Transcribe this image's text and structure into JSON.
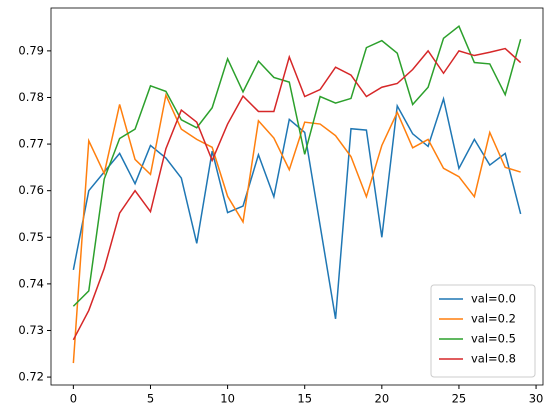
{
  "chart_data": {
    "type": "line",
    "x": [
      0,
      1,
      2,
      3,
      4,
      5,
      6,
      7,
      8,
      9,
      10,
      11,
      12,
      13,
      14,
      15,
      16,
      17,
      18,
      19,
      20,
      21,
      22,
      23,
      24,
      25,
      26,
      27,
      28,
      29
    ],
    "series": [
      {
        "name": "val=0.0",
        "color": "#1f77b4",
        "values": [
          0.743,
          0.76,
          0.764,
          0.768,
          0.7615,
          0.7697,
          0.767,
          0.7627,
          0.7487,
          0.7685,
          0.7553,
          0.7567,
          0.7677,
          0.7587,
          0.7753,
          0.7725,
          0.7525,
          0.7325,
          0.7733,
          0.773,
          0.75,
          0.7782,
          0.7722,
          0.7695,
          0.7797,
          0.7648,
          0.771,
          0.7655,
          0.768,
          0.755
        ]
      },
      {
        "name": "val=0.2",
        "color": "#ff7f0e",
        "values": [
          0.723,
          0.7707,
          0.7637,
          0.7785,
          0.7667,
          0.7635,
          0.7805,
          0.7732,
          0.771,
          0.7693,
          0.7588,
          0.7533,
          0.775,
          0.7713,
          0.7645,
          0.7747,
          0.7743,
          0.7718,
          0.7673,
          0.7587,
          0.7697,
          0.7768,
          0.7692,
          0.771,
          0.7648,
          0.763,
          0.7587,
          0.7725,
          0.765,
          0.764
        ]
      },
      {
        "name": "val=0.5",
        "color": "#2ca02c",
        "values": [
          0.7352,
          0.7385,
          0.7625,
          0.7712,
          0.7732,
          0.7825,
          0.7813,
          0.7752,
          0.7735,
          0.7778,
          0.7883,
          0.7812,
          0.7878,
          0.7843,
          0.7833,
          0.7678,
          0.7802,
          0.7788,
          0.7798,
          0.7907,
          0.7922,
          0.7895,
          0.7785,
          0.7822,
          0.7927,
          0.7953,
          0.7875,
          0.7872,
          0.7806,
          0.7925
        ]
      },
      {
        "name": "val=0.8",
        "color": "#d62728",
        "values": [
          0.728,
          0.7343,
          0.7433,
          0.7552,
          0.76,
          0.7555,
          0.769,
          0.7773,
          0.7747,
          0.7665,
          0.7743,
          0.7803,
          0.777,
          0.777,
          0.7887,
          0.7802,
          0.7817,
          0.7865,
          0.7848,
          0.7802,
          0.7822,
          0.783,
          0.786,
          0.79,
          0.7852,
          0.79,
          0.789,
          0.7897,
          0.7905,
          0.7875
        ]
      }
    ],
    "xlim": [
      -1.45,
      30.45
    ],
    "ylim": [
      0.7183,
      0.7992
    ],
    "xticks": [
      0,
      5,
      10,
      15,
      20,
      25,
      30
    ],
    "yticks": [
      0.72,
      0.73,
      0.74,
      0.75,
      0.76,
      0.77,
      0.78,
      0.79
    ],
    "legend": "lower right"
  }
}
